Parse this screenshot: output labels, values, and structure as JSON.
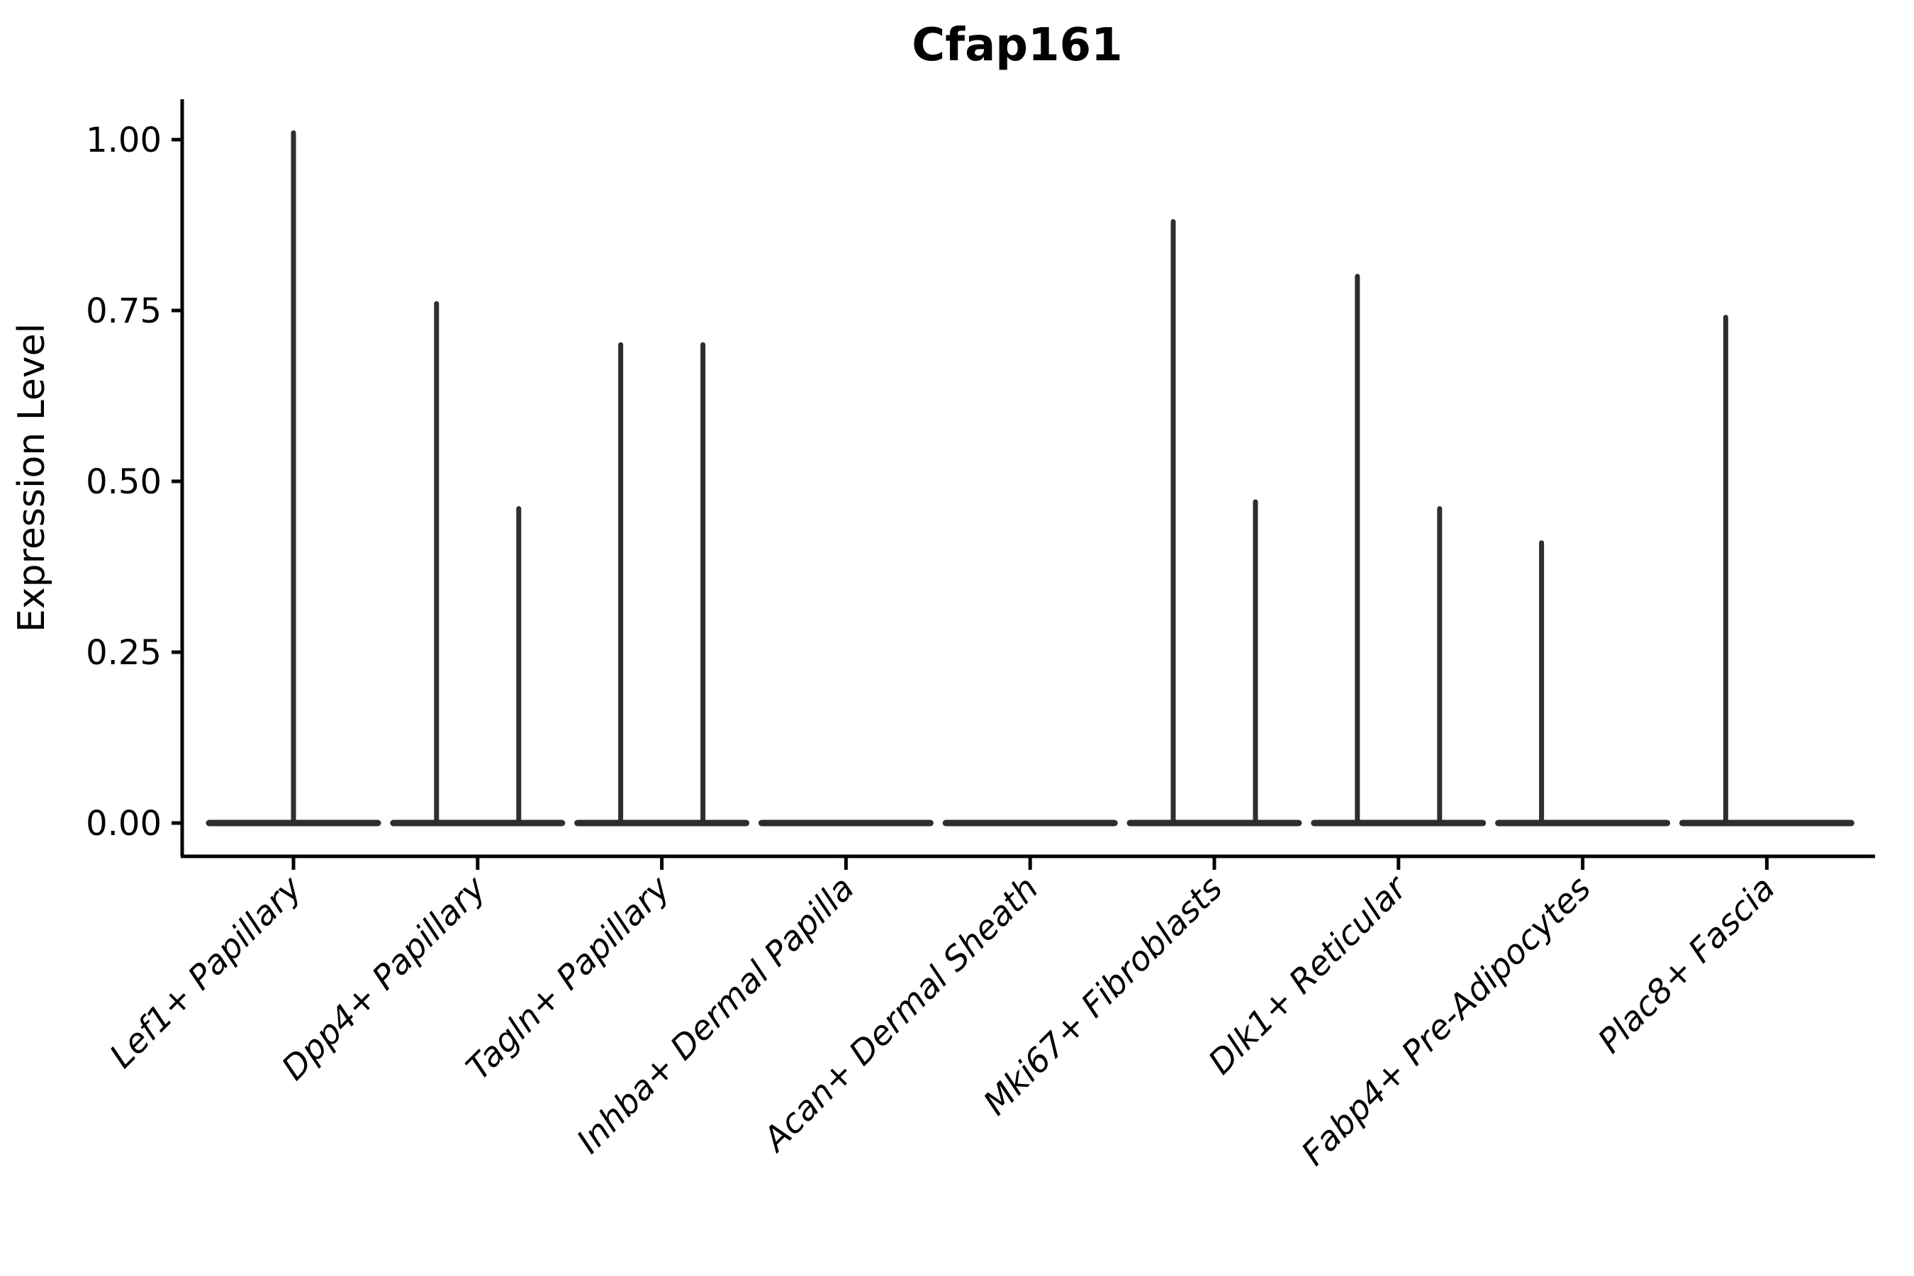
{
  "chart_data": {
    "type": "violin",
    "title": "Cfap161",
    "ylabel": "Expression Level",
    "xlabel": "",
    "grid": false,
    "legend": "none",
    "axis_range_y": [
      -0.05,
      1.06
    ],
    "yticks": [
      {
        "value": 0.0,
        "label": "0.00"
      },
      {
        "value": 0.25,
        "label": "0.25"
      },
      {
        "value": 0.5,
        "label": "0.50"
      },
      {
        "value": 0.75,
        "label": "0.75"
      },
      {
        "value": 1.0,
        "label": "1.00"
      }
    ],
    "categories": [
      {
        "label": "Lef1+ Papillary",
        "violins": [
          {
            "position": "center",
            "peak": 1.01
          }
        ]
      },
      {
        "label": "Dpp4+ Papillary",
        "violins": [
          {
            "position": "left",
            "peak": 0.76
          },
          {
            "position": "right",
            "peak": 0.46
          }
        ]
      },
      {
        "label": "Tagln+ Papillary",
        "violins": [
          {
            "position": "left",
            "peak": 0.7
          },
          {
            "position": "right",
            "peak": 0.7
          }
        ]
      },
      {
        "label": "Inhba+ Dermal Papilla",
        "violins": [
          {
            "position": "left",
            "peak": 0.0
          },
          {
            "position": "right",
            "peak": 0.0
          }
        ]
      },
      {
        "label": "Acan+ Dermal Sheath",
        "violins": [
          {
            "position": "left",
            "peak": 0.0
          },
          {
            "position": "right",
            "peak": 0.0
          }
        ]
      },
      {
        "label": "Mki67+ Fibroblasts",
        "violins": [
          {
            "position": "left",
            "peak": 0.88
          },
          {
            "position": "right",
            "peak": 0.47
          }
        ]
      },
      {
        "label": "Dlk1+ Reticular",
        "violins": [
          {
            "position": "left",
            "peak": 0.8
          },
          {
            "position": "right",
            "peak": 0.46
          }
        ]
      },
      {
        "label": "Fabp4+ Pre-Adipocytes",
        "violins": [
          {
            "position": "left",
            "peak": 0.41
          },
          {
            "position": "right",
            "peak": 0.0
          }
        ]
      },
      {
        "label": "Plac8+ Fascia",
        "violins": [
          {
            "position": "left",
            "peak": 0.74
          },
          {
            "position": "right",
            "peak": 0.0
          }
        ]
      }
    ],
    "colors": {
      "violin": "#2e2e2e",
      "axis": "#000000",
      "text": "#000000",
      "background": "#ffffff"
    }
  }
}
